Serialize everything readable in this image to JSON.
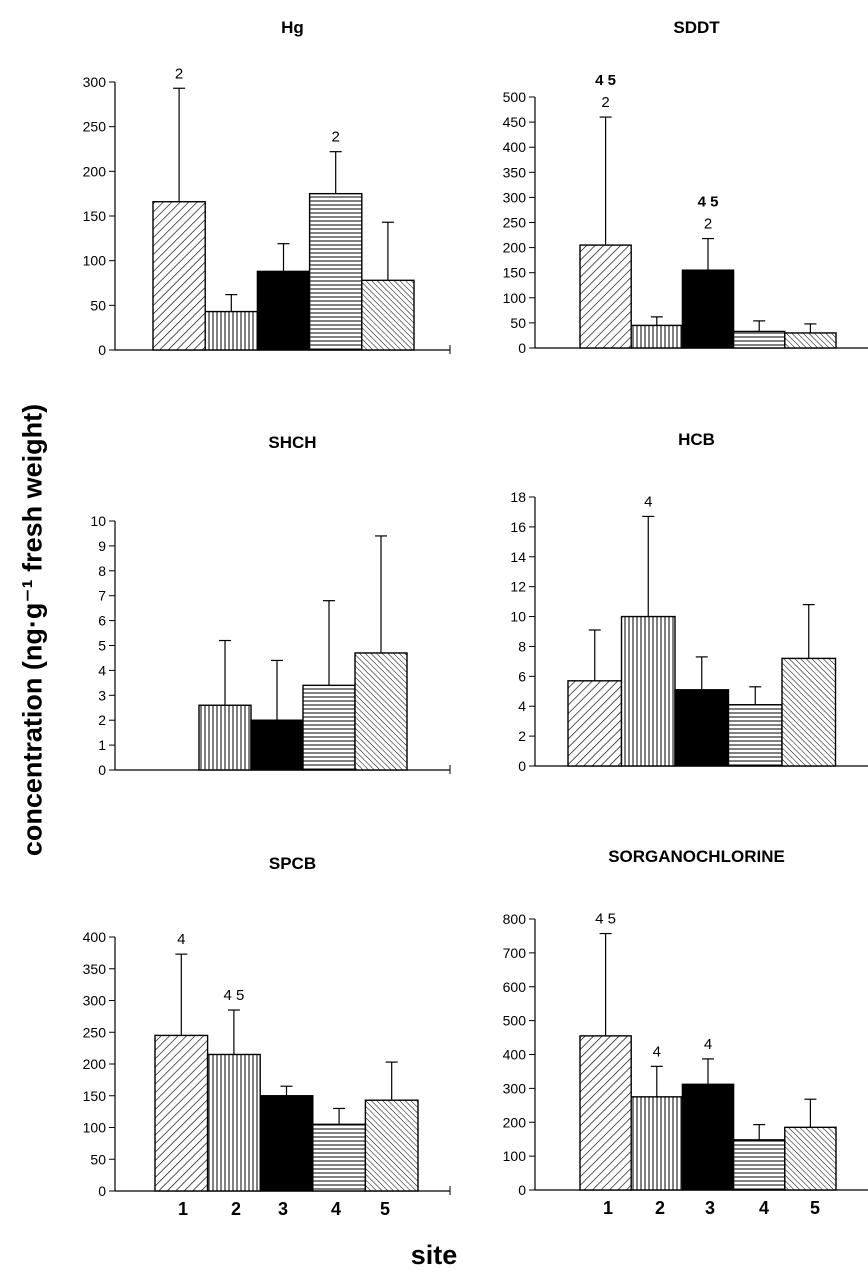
{
  "figure": {
    "ylabel": "concentration (ng·g⁻¹ fresh weight)",
    "xlabel": "site"
  },
  "chart_data": [
    {
      "type": "bar",
      "title": "Hg",
      "categories": [
        "1",
        "2",
        "3",
        "4",
        "5"
      ],
      "values": [
        166,
        43,
        88,
        175,
        78
      ],
      "errors": [
        127,
        19,
        31,
        47,
        65
      ],
      "annotations": [
        {
          "bar": 0,
          "lines": [
            "2"
          ]
        },
        {
          "bar": 3,
          "lines": [
            "2"
          ]
        }
      ],
      "ylim": [
        0,
        300
      ],
      "yticks": [
        0,
        50,
        100,
        150,
        200,
        250,
        300
      ],
      "grid": false,
      "legend": "none"
    },
    {
      "type": "bar",
      "title": "SDDT",
      "categories": [
        "1",
        "2",
        "3",
        "4",
        "5"
      ],
      "values": [
        205,
        45,
        155,
        33,
        30
      ],
      "errors": [
        255,
        17,
        63,
        21,
        18
      ],
      "annotations": [
        {
          "bar": 0,
          "lines": [
            "4 5",
            "2"
          ]
        },
        {
          "bar": 2,
          "lines": [
            "4 5",
            "2"
          ]
        }
      ],
      "ylim": [
        0,
        500
      ],
      "yticks": [
        0,
        50,
        100,
        150,
        200,
        250,
        300,
        350,
        400,
        450,
        500
      ],
      "grid": false,
      "legend": "none"
    },
    {
      "type": "bar",
      "title": "SHCH",
      "categories": [
        "1",
        "2",
        "3",
        "4",
        "5"
      ],
      "values": [
        null,
        2.6,
        2.0,
        3.4,
        4.7
      ],
      "errors": [
        null,
        2.6,
        2.4,
        3.4,
        4.7
      ],
      "annotations": [],
      "ylim": [
        0,
        10
      ],
      "yticks": [
        0,
        1,
        2,
        3,
        4,
        5,
        6,
        7,
        8,
        9,
        10
      ],
      "grid": false,
      "legend": "none"
    },
    {
      "type": "bar",
      "title": "HCB",
      "categories": [
        "1",
        "2",
        "3",
        "4",
        "5"
      ],
      "values": [
        5.7,
        10.0,
        5.1,
        4.1,
        7.2
      ],
      "errors": [
        3.4,
        6.7,
        2.2,
        1.2,
        3.6
      ],
      "annotations": [
        {
          "bar": 1,
          "lines": [
            "4"
          ]
        }
      ],
      "ylim": [
        0,
        18
      ],
      "yticks": [
        0,
        2,
        4,
        6,
        8,
        10,
        12,
        14,
        16,
        18
      ],
      "grid": false,
      "legend": "none"
    },
    {
      "type": "bar",
      "title": "SPCB",
      "categories": [
        "1",
        "2",
        "3",
        "4",
        "5"
      ],
      "values": [
        245,
        215,
        150,
        105,
        143
      ],
      "errors": [
        128,
        70,
        15,
        25,
        60
      ],
      "annotations": [
        {
          "bar": 0,
          "lines": [
            "4"
          ]
        },
        {
          "bar": 1,
          "lines": [
            "4 5"
          ]
        }
      ],
      "ylim": [
        0,
        400
      ],
      "yticks": [
        0,
        50,
        100,
        150,
        200,
        250,
        300,
        350,
        400
      ],
      "grid": false,
      "legend": "none"
    },
    {
      "type": "bar",
      "title": "SORGANOCHLORINE",
      "categories": [
        "1",
        "2",
        "3",
        "4",
        "5"
      ],
      "values": [
        455,
        275,
        312,
        148,
        185
      ],
      "errors": [
        302,
        90,
        75,
        45,
        83
      ],
      "annotations": [
        {
          "bar": 0,
          "lines": [
            "4 5"
          ]
        },
        {
          "bar": 1,
          "lines": [
            "4"
          ]
        },
        {
          "bar": 2,
          "lines": [
            "4"
          ]
        }
      ],
      "ylim": [
        0,
        800
      ],
      "yticks": [
        0,
        100,
        200,
        300,
        400,
        500,
        600,
        700,
        800
      ],
      "grid": false,
      "legend": "none"
    }
  ]
}
